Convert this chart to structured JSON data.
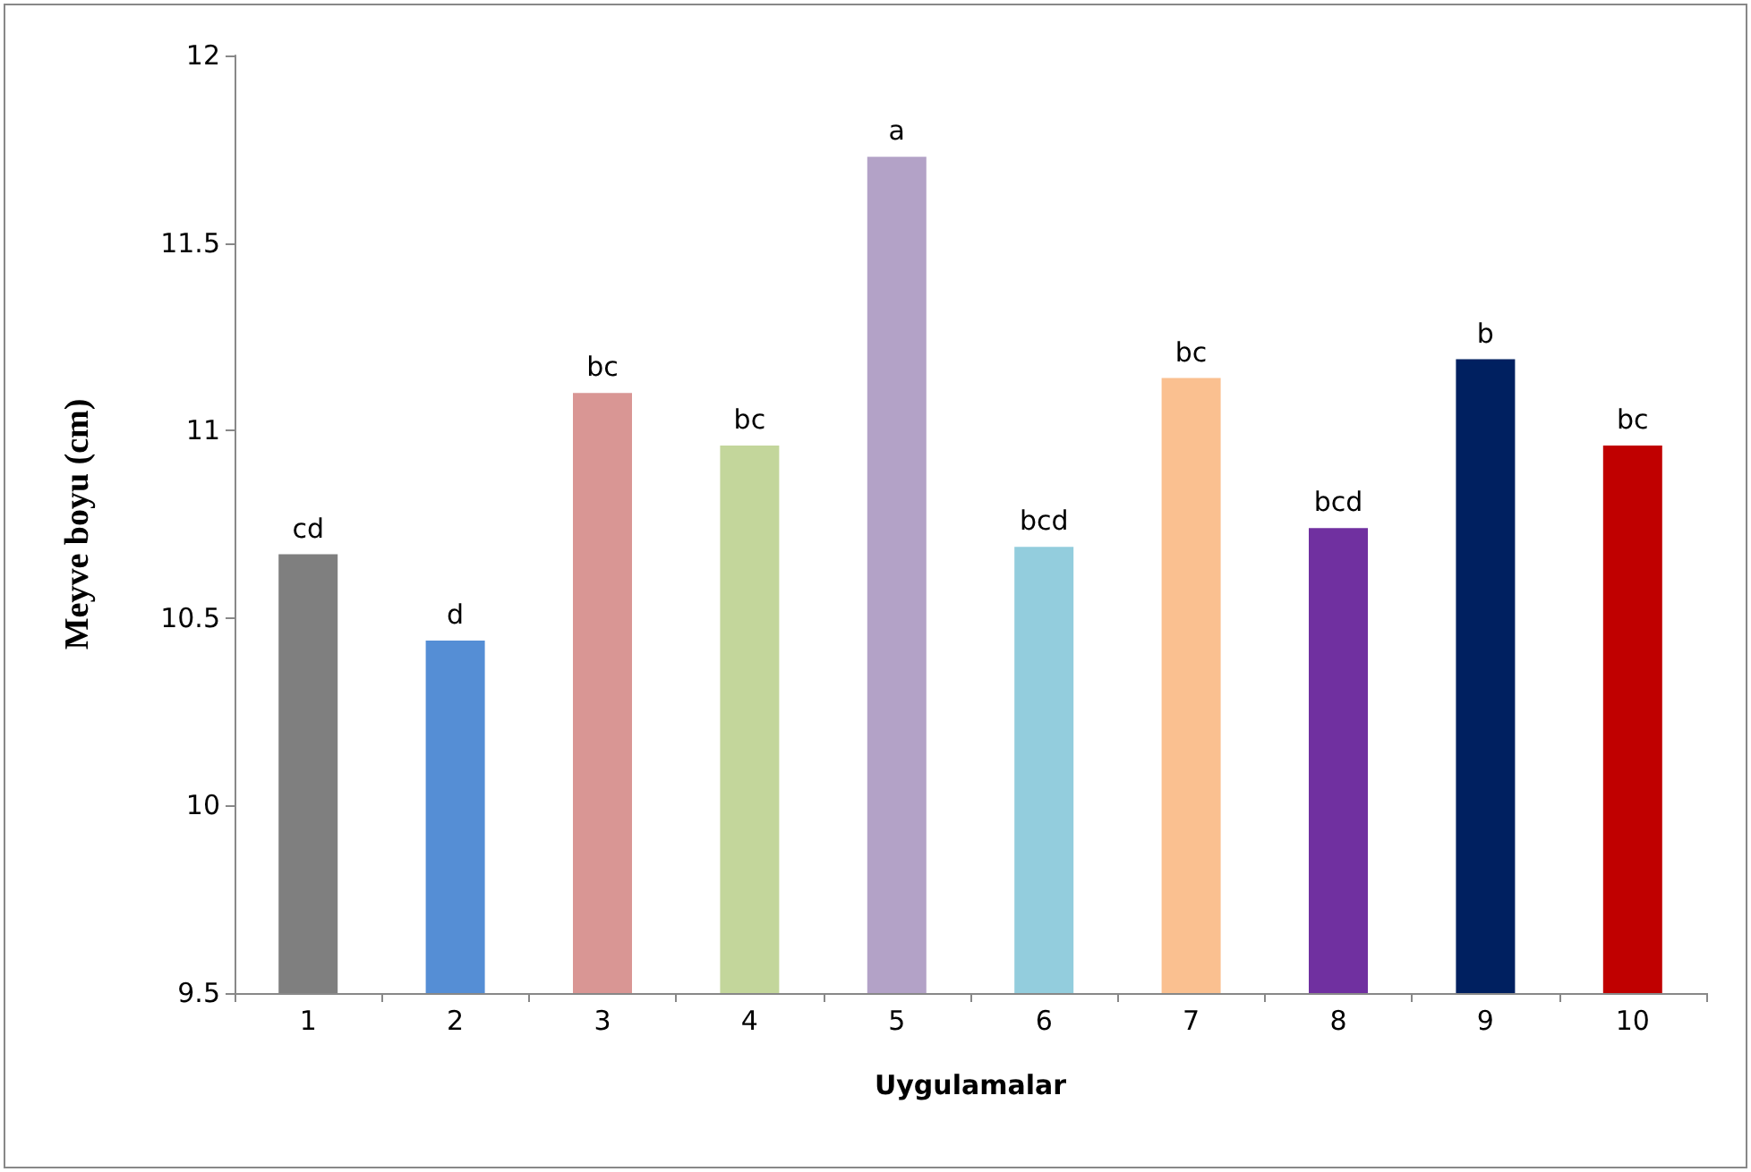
{
  "chart_data": {
    "type": "bar",
    "xlabel": "Uygulamalar",
    "ylabel": "Meyve boyu (cm)",
    "categories": [
      "1",
      "2",
      "3",
      "4",
      "5",
      "6",
      "7",
      "8",
      "9",
      "10"
    ],
    "values": [
      10.67,
      10.44,
      11.1,
      10.96,
      11.73,
      10.69,
      11.14,
      10.74,
      11.19,
      10.96
    ],
    "colors": [
      "#7f7f7f",
      "#558ed5",
      "#d99694",
      "#c3d69b",
      "#b3a2c7",
      "#93cddd",
      "#fac090",
      "#7030a0",
      "#002060",
      "#c00000"
    ],
    "ylim": [
      9.5,
      12
    ],
    "yticks": [
      9.5,
      10,
      10.5,
      11,
      11.5,
      12
    ],
    "grid": false,
    "annotations": [
      {
        "text": "cd",
        "x": "1",
        "y": 10.67
      },
      {
        "text": "d",
        "x": "2",
        "y": 10.44
      },
      {
        "text": "bc",
        "x": "3",
        "y": 11.1
      },
      {
        "text": "bc",
        "x": "4",
        "y": 10.96
      },
      {
        "text": "a",
        "x": "5",
        "y": 11.73
      },
      {
        "text": "bcd",
        "x": "6",
        "y": 10.69
      },
      {
        "text": "bc",
        "x": "7",
        "y": 11.14
      },
      {
        "text": "bcd",
        "x": "8",
        "y": 10.74
      },
      {
        "text": "b",
        "x": "9",
        "y": 11.19
      },
      {
        "text": "bc",
        "x": "10",
        "y": 10.96
      }
    ]
  }
}
